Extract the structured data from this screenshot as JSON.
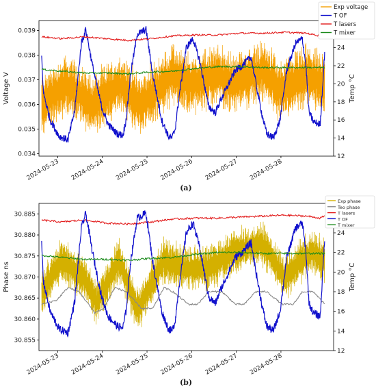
{
  "chart_data": [
    {
      "type": "line",
      "panel_label": "(a)",
      "ylabel": "Voltage V",
      "y2label": "Temp °C",
      "ylim": [
        0.0339,
        0.0394
      ],
      "y2lim": [
        12,
        27
      ],
      "yticks": [
        "0.034",
        "0.035",
        "0.036",
        "0.037",
        "0.038",
        "0.039"
      ],
      "y2ticks": [
        "12",
        "14",
        "16",
        "18",
        "20",
        "22",
        "24",
        "26"
      ],
      "xlim": [
        0,
        6.6
      ],
      "xticks": [
        "2024-05-23",
        "2024-05-24",
        "2024-05-25",
        "2024-05-26",
        "2024-05-27",
        "2024-05-28"
      ],
      "xtick_positions": [
        0.42,
        1.42,
        2.42,
        3.42,
        4.42,
        5.42
      ],
      "legend_position": "upper-right",
      "series": [
        {
          "name": "Exp voltage",
          "color": "#f5a000",
          "axis": "left",
          "style": "oscillating",
          "x_range": [
            0.06,
            6.4
          ],
          "mean": 0.0368,
          "amplitude": 0.0014,
          "envelope": [
            [
              0.06,
              0.036
            ],
            [
              0.6,
              0.0368
            ],
            [
              1.2,
              0.036
            ],
            [
              1.8,
              0.0368
            ],
            [
              2.3,
              0.036
            ],
            [
              3.0,
              0.0372
            ],
            [
              3.4,
              0.0368
            ],
            [
              4.0,
              0.0372
            ],
            [
              4.4,
              0.0368
            ],
            [
              5.0,
              0.0374
            ],
            [
              5.4,
              0.0366
            ],
            [
              6.0,
              0.0372
            ],
            [
              6.4,
              0.0368
            ]
          ]
        },
        {
          "name": "T OF",
          "color": "#1111cc",
          "axis": "right",
          "x": [
            0.06,
            0.1,
            0.25,
            0.45,
            0.65,
            0.8,
            0.88,
            0.95,
            1.05,
            1.2,
            1.4,
            1.55,
            1.75,
            1.88,
            1.95,
            2.05,
            2.2,
            2.4,
            2.55,
            2.75,
            2.9,
            2.98,
            3.05,
            3.15,
            3.3,
            3.45,
            3.6,
            3.8,
            3.95,
            4.05,
            4.2,
            4.4,
            4.55,
            4.75,
            4.9,
            5.0,
            5.1,
            5.25,
            5.4,
            5.55,
            5.75,
            5.9,
            5.98,
            6.05,
            6.15,
            6.3,
            6.4
          ],
          "values": [
            23.0,
            19.0,
            16.0,
            14.2,
            13.8,
            17.0,
            21.0,
            24.5,
            26.0,
            22.0,
            17.5,
            15.5,
            14.5,
            14.3,
            16.0,
            21.0,
            25.5,
            26.0,
            21.0,
            16.0,
            14.2,
            14.0,
            15.0,
            19.0,
            24.0,
            25.0,
            22.5,
            17.5,
            16.8,
            18.0,
            19.5,
            21.5,
            22.0,
            23.0,
            19.0,
            16.5,
            14.5,
            14.0,
            16.0,
            21.5,
            24.5,
            25.0,
            22.0,
            16.8,
            15.8,
            15.5,
            23.5
          ]
        },
        {
          "name": "T lasers",
          "color": "#e21b1b",
          "axis": "right",
          "x": [
            0.06,
            0.5,
            1.0,
            1.5,
            2.0,
            2.5,
            3.0,
            3.5,
            4.0,
            4.5,
            5.0,
            5.5,
            6.0,
            6.3,
            6.4
          ],
          "values": [
            25.2,
            25.0,
            25.2,
            25.0,
            24.8,
            25.0,
            25.3,
            25.4,
            25.4,
            25.6,
            25.6,
            25.7,
            25.6,
            25.3,
            25.6
          ]
        },
        {
          "name": "T mixer",
          "color": "#1a8a1a",
          "axis": "right",
          "x": [
            0.06,
            0.5,
            1.0,
            1.5,
            2.0,
            2.5,
            3.0,
            3.5,
            4.0,
            4.5,
            5.0,
            5.5,
            6.0,
            6.4
          ],
          "values": [
            21.6,
            21.4,
            21.2,
            21.2,
            21.1,
            21.3,
            21.4,
            21.7,
            21.9,
            21.9,
            21.8,
            21.8,
            21.8,
            21.8
          ]
        }
      ]
    },
    {
      "type": "line",
      "panel_label": "(b)",
      "ylabel": "Phase ns",
      "y2label": "Temp °C",
      "ylim": [
        30.8525,
        30.8875
      ],
      "y2lim": [
        12,
        27
      ],
      "yticks": [
        "30.855",
        "30.860",
        "30.865",
        "30.870",
        "30.875",
        "30.880",
        "30.885"
      ],
      "y2ticks": [
        "12",
        "14",
        "16",
        "18",
        "20",
        "22",
        "24",
        "26"
      ],
      "xlim": [
        0,
        6.6
      ],
      "xticks": [
        "2024-05-23",
        "2024-05-24",
        "2024-05-25",
        "2024-05-26",
        "2024-05-27",
        "2024-05-28"
      ],
      "xtick_positions": [
        0.42,
        1.42,
        2.42,
        3.42,
        4.42,
        5.42
      ],
      "legend_position": "upper-right",
      "series": [
        {
          "name": "Exp phase",
          "color": "#d4b000",
          "axis": "left",
          "style": "oscillating",
          "x_range": [
            0.06,
            6.4
          ],
          "mean": 30.871,
          "amplitude": 0.006,
          "envelope": [
            [
              0.06,
              30.866
            ],
            [
              0.5,
              30.874
            ],
            [
              1.0,
              30.87
            ],
            [
              1.3,
              30.864
            ],
            [
              1.8,
              30.874
            ],
            [
              2.2,
              30.862
            ],
            [
              2.8,
              30.874
            ],
            [
              3.3,
              30.872
            ],
            [
              3.8,
              30.872
            ],
            [
              4.4,
              30.876
            ],
            [
              5.0,
              30.878
            ],
            [
              5.5,
              30.87
            ],
            [
              6.1,
              30.876
            ],
            [
              6.4,
              30.874
            ]
          ]
        },
        {
          "name": "Teo phase",
          "color": "#888888",
          "axis": "left",
          "x": [
            0.06,
            0.4,
            0.65,
            0.9,
            1.25,
            1.45,
            1.7,
            1.95,
            2.3,
            2.55,
            2.8,
            3.0,
            3.35,
            3.55,
            3.8,
            4.1,
            4.4,
            4.6,
            4.85,
            5.1,
            5.45,
            5.7,
            5.9,
            6.15,
            6.4
          ],
          "values": [
            30.8635,
            30.8645,
            30.8675,
            30.8665,
            30.8615,
            30.8625,
            30.8675,
            30.8665,
            30.8625,
            30.8625,
            30.8675,
            30.8665,
            30.8635,
            30.8635,
            30.8665,
            30.8665,
            30.8635,
            30.8635,
            30.8665,
            30.8665,
            30.8635,
            30.8635,
            30.8665,
            30.8665,
            30.8635
          ]
        },
        {
          "name": "T lasers",
          "color": "#e21b1b",
          "axis": "right",
          "x": [
            0.06,
            0.5,
            1.0,
            1.5,
            2.0,
            2.5,
            3.0,
            3.5,
            4.0,
            4.5,
            5.0,
            5.5,
            6.0,
            6.3,
            6.4
          ],
          "values": [
            25.3,
            25.1,
            25.3,
            25.0,
            24.9,
            25.1,
            25.4,
            25.5,
            25.5,
            25.6,
            25.7,
            25.8,
            25.7,
            25.5,
            25.7
          ]
        },
        {
          "name": "T OF",
          "color": "#1111cc",
          "axis": "right",
          "x": [
            0.06,
            0.1,
            0.25,
            0.45,
            0.65,
            0.8,
            0.88,
            0.95,
            1.05,
            1.2,
            1.4,
            1.55,
            1.75,
            1.88,
            1.95,
            2.05,
            2.2,
            2.4,
            2.55,
            2.75,
            2.9,
            2.98,
            3.05,
            3.15,
            3.3,
            3.45,
            3.6,
            3.8,
            3.95,
            4.05,
            4.2,
            4.4,
            4.55,
            4.75,
            4.9,
            5.0,
            5.1,
            5.25,
            5.4,
            5.55,
            5.75,
            5.9,
            5.98,
            6.05,
            6.15,
            6.3,
            6.4
          ],
          "values": [
            23.0,
            19.0,
            16.0,
            14.2,
            13.8,
            17.0,
            21.0,
            24.5,
            26.0,
            22.0,
            17.5,
            15.5,
            14.5,
            14.3,
            16.0,
            21.0,
            25.5,
            26.0,
            21.0,
            16.0,
            14.2,
            14.0,
            15.0,
            19.0,
            24.0,
            25.0,
            22.5,
            17.5,
            16.8,
            18.0,
            19.5,
            21.5,
            22.0,
            23.0,
            19.0,
            16.5,
            14.5,
            14.0,
            16.0,
            21.5,
            24.5,
            25.0,
            22.0,
            16.8,
            15.8,
            15.5,
            23.5
          ]
        },
        {
          "name": "T mixer",
          "color": "#1a8a1a",
          "axis": "right",
          "x": [
            0.06,
            0.5,
            1.0,
            1.5,
            2.0,
            2.5,
            3.0,
            3.5,
            4.0,
            4.5,
            5.0,
            5.5,
            6.0,
            6.4
          ],
          "values": [
            21.7,
            21.5,
            21.3,
            21.3,
            21.2,
            21.4,
            21.5,
            21.8,
            22.0,
            22.0,
            21.9,
            21.9,
            21.9,
            21.9
          ]
        }
      ]
    }
  ]
}
